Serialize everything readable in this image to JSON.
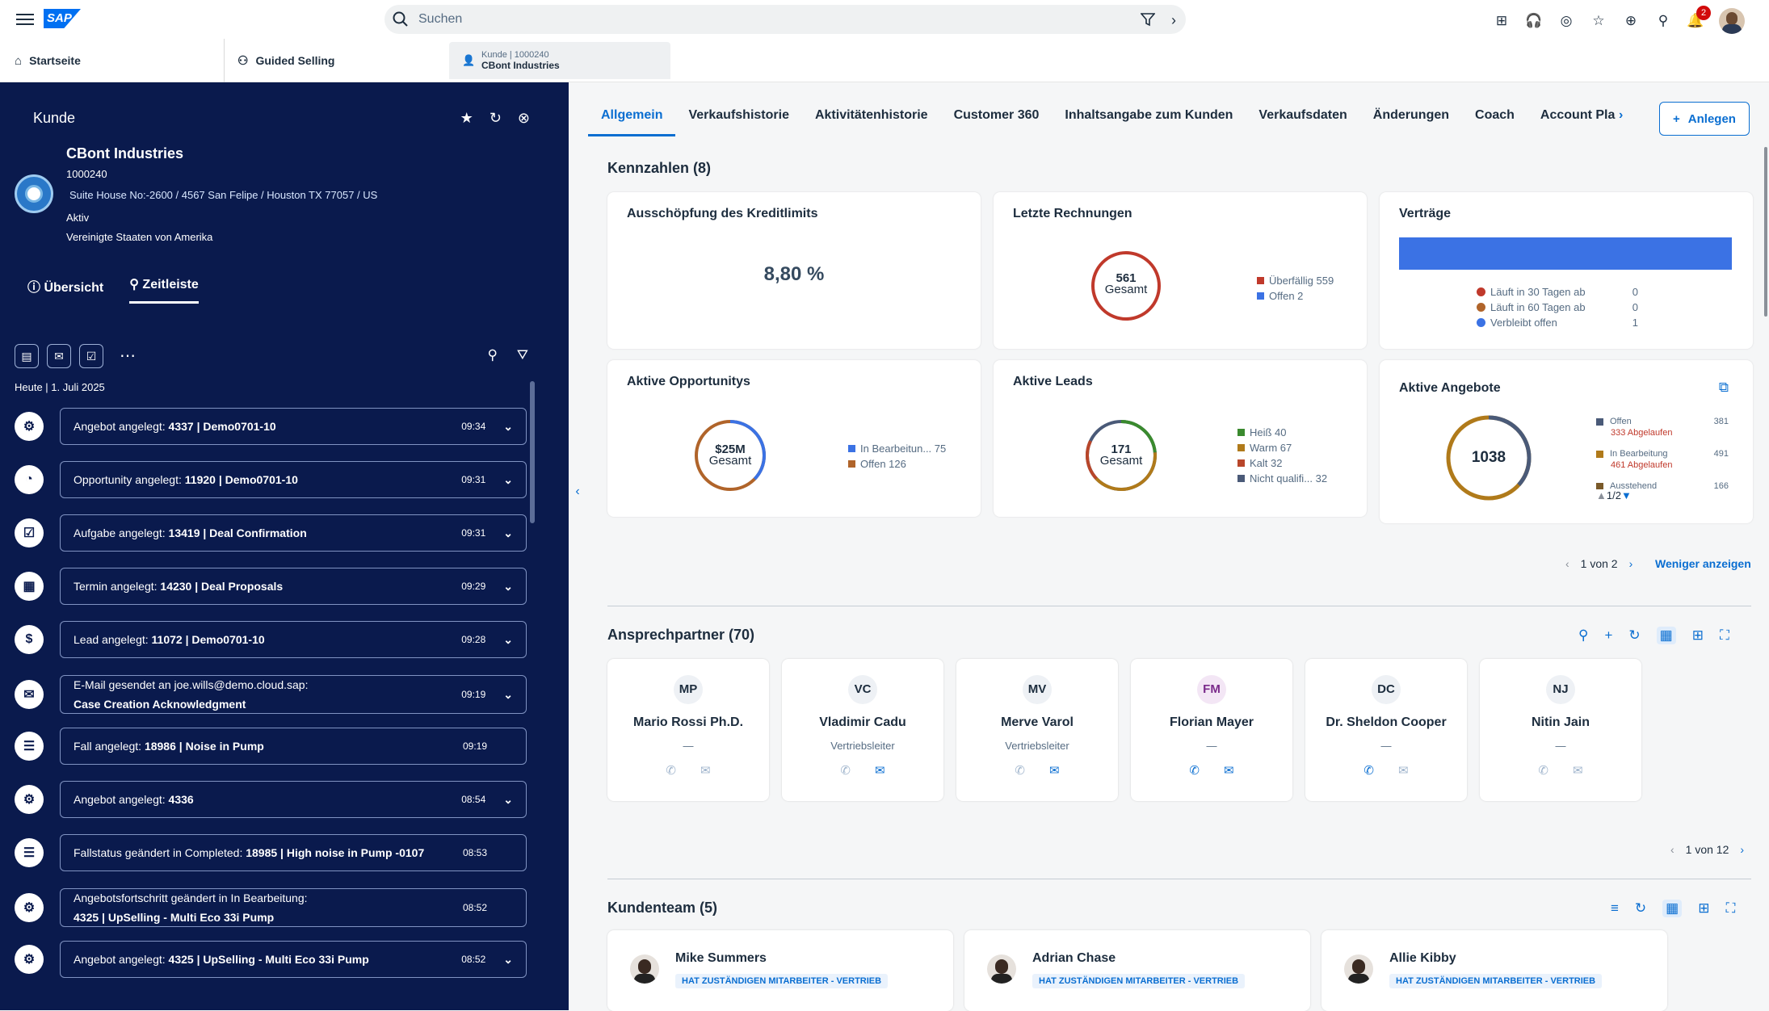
{
  "shell": {
    "search_placeholder": "Suchen",
    "notifications_count": "2",
    "logo": "SAP"
  },
  "top_tabs": [
    {
      "label": "Startseite"
    },
    {
      "label": "Guided Selling"
    },
    {
      "small": "Kunde | 1000240",
      "big": "CBont Industries"
    }
  ],
  "left": {
    "title": "Kunde",
    "customer": {
      "name": "CBont Industries",
      "id": "1000240",
      "address": "Suite House No:-2600 / 4567 San Felipe / Houston TX 77057 / US",
      "status": "Aktiv",
      "country": "Vereinigte Staaten von Amerika"
    },
    "tabs": [
      "Übersicht",
      "Zeitleiste"
    ],
    "date": "Heute | 1. Juli 2025",
    "timeline": [
      {
        "icon": "quote-icon",
        "pre": "Angebot angelegt: ",
        "bold": "4337 | Demo0701-10",
        "time": "09:34",
        "chev": true
      },
      {
        "icon": "opportunity-icon",
        "pre": "Opportunity angelegt: ",
        "bold": "11920 | Demo0701-10",
        "time": "09:31",
        "chev": true
      },
      {
        "icon": "task-icon",
        "pre": "Aufgabe angelegt: ",
        "bold": "13419 | Deal Confirmation",
        "time": "09:31",
        "chev": true
      },
      {
        "icon": "calendar-icon",
        "pre": "Termin angelegt: ",
        "bold": "14230 | Deal Proposals",
        "time": "09:29",
        "chev": true
      },
      {
        "icon": "lead-icon",
        "pre": "Lead angelegt: ",
        "bold": "11072 | Demo0701-10",
        "time": "09:28",
        "chev": true
      },
      {
        "icon": "email-icon",
        "pre": "E-Mail gesendet an joe.wills@demo.cloud.sap:",
        "line2": "Case Creation Acknowledgment",
        "time": "09:19",
        "chev": true
      },
      {
        "icon": "case-icon",
        "pre": "Fall angelegt: ",
        "bold": "18986 | Noise in Pump",
        "time": "09:19",
        "chev": false
      },
      {
        "icon": "quote-icon",
        "pre": "Angebot angelegt: ",
        "bold": "4336",
        "time": "08:54",
        "chev": true
      },
      {
        "icon": "case-icon",
        "pre": "Fallstatus geändert in Completed: ",
        "bold": "18985 | High noise in Pump -0107",
        "time": "08:53",
        "chev": false
      },
      {
        "icon": "quote-icon",
        "pre": "Angebotsfortschritt geändert in In Bearbeitung:",
        "line2": "4325 | UpSelling - Multi Eco 33i Pump",
        "time": "08:52",
        "chev": false
      },
      {
        "icon": "quote-icon",
        "pre": "Angebot angelegt: ",
        "bold": "4325 | UpSelling - Multi Eco 33i Pump",
        "time": "08:52",
        "chev": true
      }
    ]
  },
  "main": {
    "tabs": [
      "Allgemein",
      "Verkaufshistorie",
      "Aktivitätenhistorie",
      "Customer 360",
      "Inhaltsangabe zum Kunden",
      "Verkaufsdaten",
      "Änderungen",
      "Coach",
      "Account Pla"
    ],
    "create_label": "Anlegen",
    "kpi_title": "Kennzahlen (8)",
    "kpis": {
      "credit": {
        "title": "Ausschöpfung des Kreditlimits",
        "value": "8,80 %"
      },
      "invoices": {
        "title": "Letzte Rechnungen",
        "total": "561",
        "total_label": "Gesamt",
        "legend": [
          {
            "label": "Überfällig 559",
            "color": "#c0392b"
          },
          {
            "label": "Offen 2",
            "color": "#3b72e4"
          }
        ]
      },
      "contracts": {
        "title": "Verträge",
        "bar_color": "#3b72e4",
        "legend": [
          {
            "label": "Läuft in 30 Tagen ab",
            "value": "0",
            "color": "#c0392b"
          },
          {
            "label": "Läuft in 60 Tagen ab",
            "value": "0",
            "color": "#b0642a"
          },
          {
            "label": "Verbleibt offen",
            "value": "1",
            "color": "#3b72e4"
          }
        ]
      },
      "opps": {
        "title": "Aktive Opportunitys",
        "total": "$25M",
        "total_label": "Gesamt",
        "legend": [
          {
            "label": "In Bearbeitun... 75",
            "color": "#3b72e4"
          },
          {
            "label": "Offen 126",
            "color": "#b0642a"
          }
        ]
      },
      "leads": {
        "title": "Aktive Leads",
        "total": "171",
        "total_label": "Gesamt",
        "legend": [
          {
            "label": "Heiß 40",
            "color": "#3a8a2e"
          },
          {
            "label": "Warm 67",
            "color": "#b07a1a"
          },
          {
            "label": "Kalt 32",
            "color": "#b8462a"
          },
          {
            "label": "Nicht qualifi... 32",
            "color": "#4a5a78"
          }
        ]
      },
      "quotes": {
        "title": "Aktive Angebote",
        "total": "1038",
        "legend": [
          {
            "label": "Offen",
            "value": "381",
            "sub": "333 Abgelaufen",
            "color": "#4a5a78"
          },
          {
            "label": "In Bearbeitung",
            "value": "491",
            "sub": "461 Abgelaufen",
            "color": "#b07a1a"
          },
          {
            "label": "Ausstehend",
            "value": "166",
            "color": "#7a5a2a"
          }
        ],
        "page": "1/2"
      }
    },
    "kpi_pager": "1 von 2",
    "show_less": "Weniger anzeigen",
    "contacts_title": "Ansprechpartner (70)",
    "contacts": [
      {
        "ini": "MP",
        "name": "Mario Rossi Ph.D.",
        "role": "—",
        "bg": "#eef1f5",
        "fg": "#1d2d3e"
      },
      {
        "ini": "VC",
        "name": "Vladimir Cadu",
        "role": "Vertriebsleiter",
        "bg": "#eef1f5",
        "fg": "#1d2d3e"
      },
      {
        "ini": "MV",
        "name": "Merve Varol",
        "role": "Vertriebsleiter",
        "bg": "#eef1f5",
        "fg": "#1d2d3e"
      },
      {
        "ini": "FM",
        "name": "Florian Mayer",
        "role": "—",
        "bg": "#f3e6f5",
        "fg": "#7a2a8a"
      },
      {
        "ini": "DC",
        "name": "Dr. Sheldon Cooper",
        "role": "—",
        "bg": "#eef1f5",
        "fg": "#1d2d3e"
      },
      {
        "ini": "NJ",
        "name": "Nitin Jain",
        "role": "—",
        "bg": "#eef1f5",
        "fg": "#1d2d3e"
      }
    ],
    "contacts_pager": "1 von 12",
    "team_title": "Kundenteam (5)",
    "team": [
      {
        "name": "Mike Summers",
        "role": "HAT ZUSTÄNDIGEN MITARBEITER - VERTRIEB"
      },
      {
        "name": "Adrian Chase",
        "role": "HAT ZUSTÄNDIGEN MITARBEITER - VERTRIEB"
      },
      {
        "name": "Allie Kibby",
        "role": "HAT ZUSTÄNDIGEN MITARBEITER - VERTRIEB"
      }
    ]
  }
}
